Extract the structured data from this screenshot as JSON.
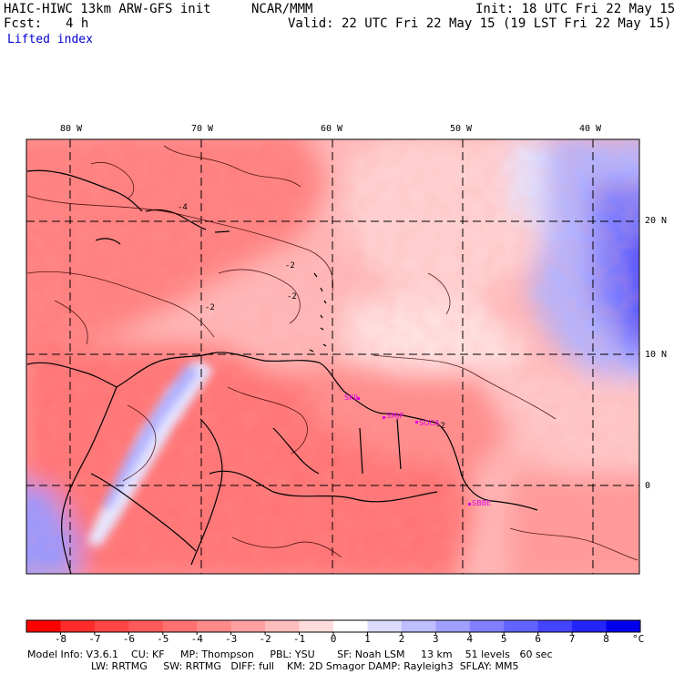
{
  "header": {
    "model": "HAIC-HIWC 13km ARW-GFS init",
    "org": "NCAR/MMM",
    "init": "Init: 18 UTC Fri 22 May 15",
    "fcst_label": "Fcst:",
    "fcst_value": "4 h",
    "valid": "Valid: 22 UTC Fri 22 May 15 (19 LST Fri 22 May 15)",
    "field": "Lifted index"
  },
  "axes": {
    "lon_labels": [
      "80 W",
      "70 W",
      "60 W",
      "50 W",
      "40 W"
    ],
    "lat_labels": [
      "20 N",
      "10 N",
      "0"
    ]
  },
  "stations": [
    "SKIL",
    "SMJP",
    "SOCA",
    "SBBE"
  ],
  "contour_labels": [
    "-4",
    "-2",
    "-2",
    "-2",
    "-2"
  ],
  "colorbar": {
    "ticks": [
      "-8",
      "-7",
      "-6",
      "-5",
      "-4",
      "-3",
      "-2",
      "-1",
      "0",
      "1",
      "2",
      "3",
      "4",
      "5",
      "6",
      "7",
      "8"
    ],
    "unit": "°C",
    "colors": [
      "#ff0000",
      "#ff2b2b",
      "#ff4444",
      "#ff5a5a",
      "#ff7070",
      "#ff8a8a",
      "#ffa0a0",
      "#ffbdbd",
      "#ffdcdc",
      "#ffffff",
      "#dcdcff",
      "#bdbdff",
      "#a0a0ff",
      "#8080ff",
      "#6262ff",
      "#4444ff",
      "#2424ff",
      "#0000ee"
    ]
  },
  "footer": {
    "line1": "Model Info: V3.6.1    CU: KF     MP: Thompson     PBL: YSU       SF: Noah LSM     13 km    51 levels   60 sec",
    "line2": "LW: RRTMG     SW: RRTMG   DIFF: full    KM: 2D Smagor DAMP: Rayleigh3  SFLAY: MM5"
  }
}
